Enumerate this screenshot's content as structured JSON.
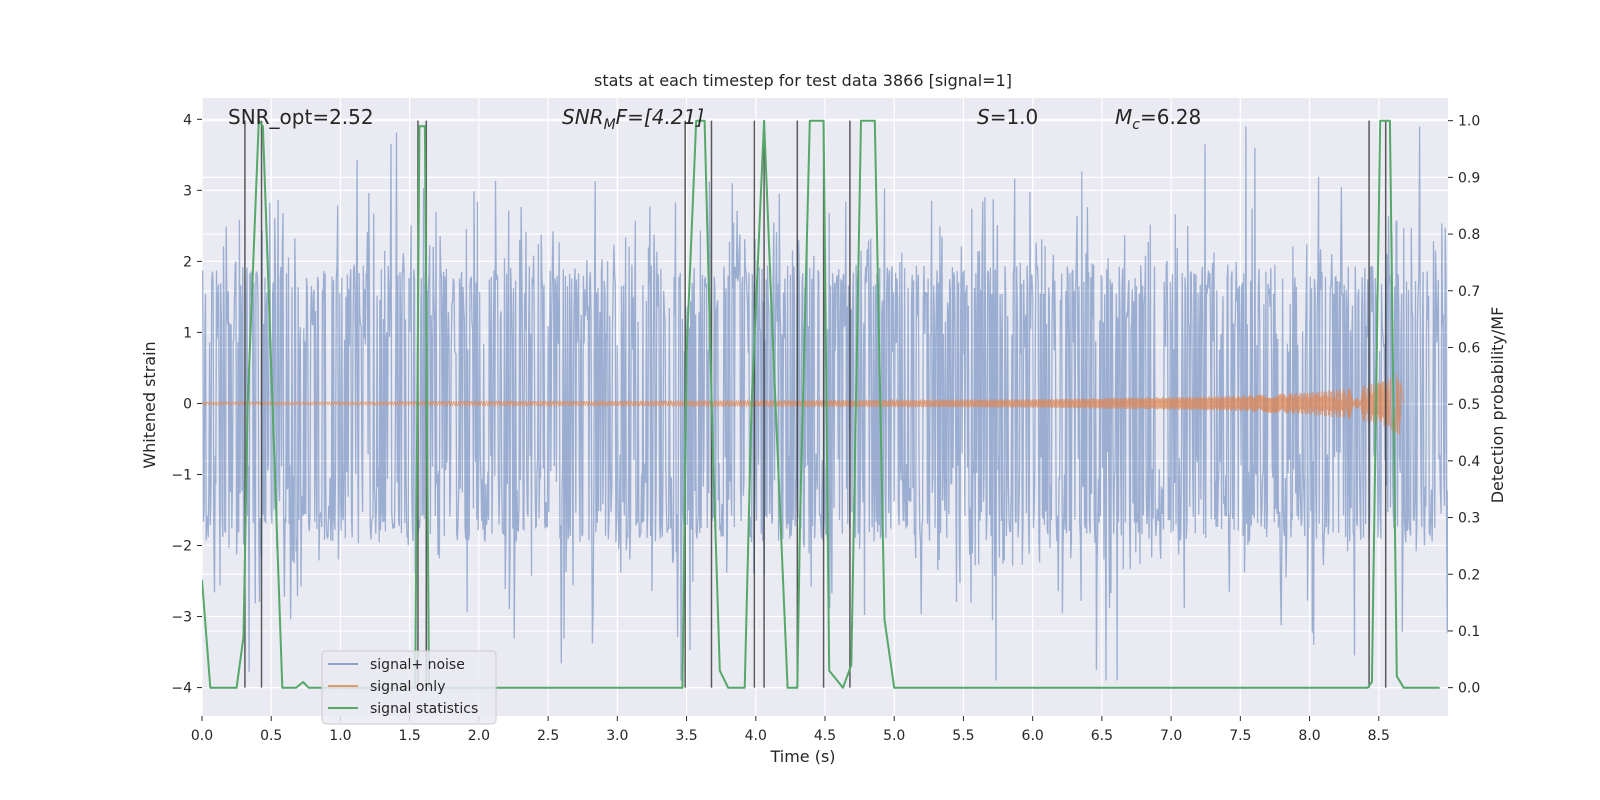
{
  "chart_data": {
    "type": "line",
    "title": "stats at each timestep for test data 3866 [signal=1]",
    "xlabel": "Time (s)",
    "ylabel": "Whitened strain",
    "y2label": "Detection probability/MF",
    "xlim": [
      0.0,
      9.0
    ],
    "ylim": [
      -4.4,
      4.3
    ],
    "y2lim": [
      -0.05,
      1.04
    ],
    "xticks": [
      "0.0",
      "0.5",
      "1.0",
      "1.5",
      "2.0",
      "2.5",
      "3.0",
      "3.5",
      "4.0",
      "4.5",
      "5.0",
      "5.5",
      "6.0",
      "6.5",
      "7.0",
      "7.5",
      "8.0",
      "8.5"
    ],
    "yticks": [
      "4",
      "3",
      "2",
      "1",
      "0",
      "−1",
      "−2",
      "−3",
      "−4"
    ],
    "y2ticks": [
      "1.0",
      "0.9",
      "0.8",
      "0.7",
      "0.6",
      "0.5",
      "0.4",
      "0.3",
      "0.2",
      "0.1",
      "0.0"
    ],
    "annotations": {
      "snr_opt": "SNR_opt=2.52",
      "snr_mf_main": "SNR",
      "snr_mf_sub": "M",
      "snr_mf_rest": "F=[4.21]",
      "s_main": "S",
      "s_rest": "=1.0",
      "mc_main": "M",
      "mc_sub": "c",
      "mc_rest": "=6.28"
    },
    "legend": {
      "position": "lower-left",
      "entries": [
        "signal+ noise",
        "signal only",
        "signal statistics"
      ]
    },
    "colors": {
      "noise": "#4c72b0",
      "signal": "#dd8452",
      "stats": "#55a868",
      "vlines": "#404040",
      "plot_bg": "#eaeaf2",
      "grid": "#ffffff"
    },
    "series": [
      {
        "name": "signal+ noise",
        "description": "whitened strain time series, noise-dominated, amplitude mostly within ±2.8 with peaks near ±3.9",
        "noise_band": [
          -1.7,
          1.7
        ],
        "peak_range": [
          -3.9,
          3.9
        ]
      },
      {
        "name": "signal only",
        "description": "chirp signal growing in amplitude, merging near t=8.65 s",
        "envelope_x": [
          0.0,
          1.0,
          2.0,
          3.0,
          4.0,
          5.0,
          6.0,
          7.0,
          7.5,
          8.0,
          8.3,
          8.5,
          8.6,
          8.65,
          8.68
        ],
        "envelope_y": [
          0.02,
          0.02,
          0.03,
          0.03,
          0.04,
          0.05,
          0.06,
          0.09,
          0.11,
          0.16,
          0.22,
          0.3,
          0.38,
          0.45,
          0.0
        ]
      },
      {
        "name": "signal statistics",
        "axis": "right",
        "x": [
          0.0,
          0.06,
          0.25,
          0.3,
          0.33,
          0.41,
          0.44,
          0.58,
          0.68,
          0.73,
          0.77,
          0.82,
          1.54,
          1.57,
          1.61,
          1.64,
          1.67,
          3.47,
          3.5,
          3.57,
          3.63,
          3.69,
          3.74,
          3.8,
          3.92,
          3.97,
          4.06,
          4.12,
          4.23,
          4.3,
          4.32,
          4.39,
          4.49,
          4.53,
          4.63,
          4.69,
          4.76,
          4.86,
          4.93,
          5.0,
          5.2,
          8.42,
          8.45,
          8.51,
          8.58,
          8.63,
          8.68,
          8.94
        ],
        "y": [
          0.19,
          0.0,
          0.0,
          0.09,
          0.5,
          1.0,
          0.99,
          0.0,
          0.0,
          0.01,
          0.0,
          0.0,
          0.0,
          0.99,
          0.99,
          0.0,
          0.0,
          0.0,
          0.59,
          1.0,
          1.0,
          0.42,
          0.03,
          0.0,
          0.0,
          0.5,
          1.0,
          0.63,
          0.0,
          0.0,
          0.3,
          1.0,
          1.0,
          0.03,
          0.0,
          0.04,
          1.0,
          1.0,
          0.12,
          0.0,
          0.0,
          0.0,
          0.01,
          1.0,
          1.0,
          0.02,
          0.0,
          0.0
        ]
      }
    ],
    "vertical_lines_x": [
      0.31,
      0.43,
      1.56,
      1.62,
      3.49,
      3.68,
      3.99,
      4.06,
      4.3,
      4.49,
      4.68,
      8.43,
      8.55
    ]
  }
}
